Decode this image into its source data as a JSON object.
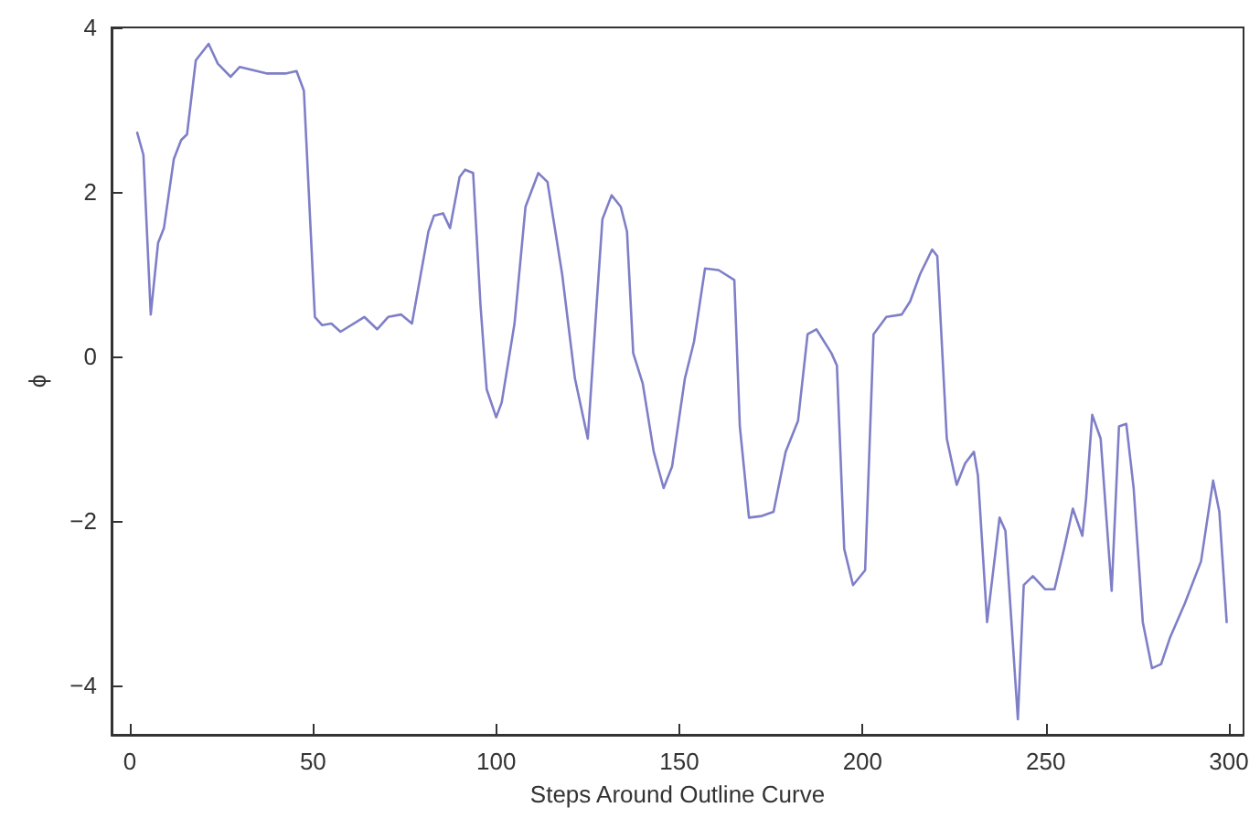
{
  "chart_data": {
    "type": "line",
    "xlabel": "Steps Around Outline Curve",
    "ylabel": "ϕ",
    "xlim": [
      -5,
      304
    ],
    "ylim": [
      -4.6,
      4
    ],
    "xticks": [
      0,
      50,
      100,
      150,
      200,
      250,
      300
    ],
    "yticks": [
      -4,
      -2,
      0,
      2,
      4
    ],
    "marker": "none",
    "line_style": "solid",
    "series": [
      {
        "color": "#7f7fc8",
        "x": [
          2,
          3.7,
          5.7,
          7.7,
          9.3,
          12,
          14,
          15.6,
          18,
          21.5,
          24,
          27.5,
          30,
          37.5,
          42.5,
          45.5,
          47.5,
          50.5,
          52.5,
          55,
          57.5,
          64,
          67.5,
          70.5,
          74,
          77,
          81.5,
          83,
          85.5,
          87.4,
          90,
          91.5,
          93.7,
          95.7,
          97.4,
          100,
          101.5,
          105,
          108,
          111.5,
          114,
          118,
          121.5,
          125,
          127.4,
          129,
          131.5,
          134,
          135.7,
          137.4,
          140,
          143,
          145.7,
          148,
          151.5,
          154,
          157,
          160.7,
          165,
          166.5,
          169,
          172.5,
          175.7,
          179,
          182.4,
          185,
          187.4,
          191.5,
          193,
          195,
          197.4,
          200.7,
          203,
          206.5,
          210.7,
          213,
          215.7,
          219,
          220.4,
          223,
          225.7,
          228,
          230.4,
          231.5,
          234,
          237.4,
          239,
          242.4,
          244,
          246.5,
          249.8,
          252.4,
          255,
          257.4,
          260,
          261,
          262.7,
          265,
          268,
          270,
          272,
          274,
          276.5,
          279,
          281.5,
          284,
          288,
          292.4,
          295.7,
          297.4,
          299.4
        ],
        "values": [
          2.72,
          2.45,
          0.51,
          1.38,
          1.56,
          2.4,
          2.63,
          2.7,
          3.6,
          3.8,
          3.56,
          3.4,
          3.52,
          3.44,
          3.44,
          3.47,
          3.23,
          0.48,
          0.38,
          0.4,
          0.3,
          0.48,
          0.33,
          0.48,
          0.51,
          0.4,
          1.52,
          1.71,
          1.74,
          1.56,
          2.18,
          2.27,
          2.23,
          0.63,
          -0.4,
          -0.74,
          -0.56,
          0.4,
          1.82,
          2.23,
          2.12,
          1.0,
          -0.27,
          -1.0,
          0.63,
          1.67,
          1.96,
          1.82,
          1.52,
          0.04,
          -0.33,
          -1.16,
          -1.6,
          -1.34,
          -0.27,
          0.18,
          1.07,
          1.05,
          0.93,
          -0.85,
          -1.96,
          -1.94,
          -1.89,
          -1.16,
          -0.78,
          0.27,
          0.33,
          0.04,
          -0.11,
          -2.34,
          -2.78,
          -2.6,
          0.27,
          0.48,
          0.51,
          0.67,
          1.0,
          1.3,
          1.22,
          -1.0,
          -1.56,
          -1.3,
          -1.16,
          -1.45,
          -3.23,
          -1.96,
          -2.12,
          -4.41,
          -2.78,
          -2.67,
          -2.83,
          -2.83,
          -2.34,
          -1.85,
          -2.18,
          -1.74,
          -0.71,
          -1.0,
          -2.85,
          -0.85,
          -0.82,
          -1.6,
          -3.23,
          -3.79,
          -3.74,
          -3.41,
          -3.0,
          -2.49,
          -1.51,
          -1.89,
          -3.23
        ]
      }
    ]
  }
}
